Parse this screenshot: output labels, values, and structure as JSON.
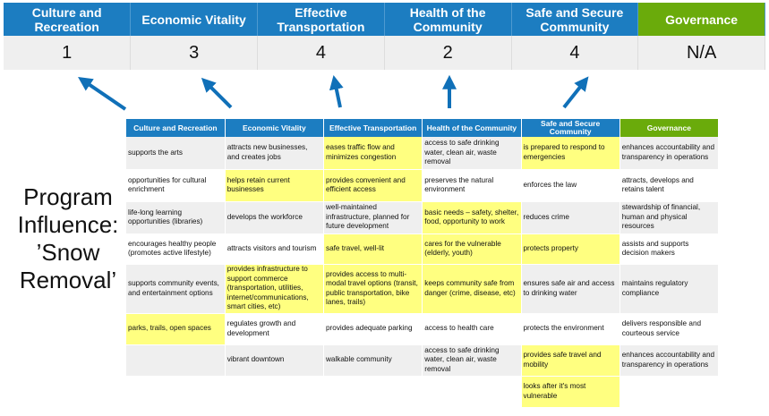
{
  "categories": [
    "Culture and Recreation",
    "Economic Vitality",
    "Effective Transportation",
    "Health of the Community",
    "Safe and Secure Community",
    "Governance"
  ],
  "scores": [
    "1",
    "3",
    "4",
    "2",
    "4",
    "N/A"
  ],
  "program_label": {
    "line1": "Program",
    "line2": "Influence:",
    "line3": "’Snow",
    "line4": "Removal’"
  },
  "colors": {
    "header_blue": "#1c7dc1",
    "governance_green": "#6aab0b",
    "highlight_yellow": "#ffff80",
    "arrow_blue": "#1070b8"
  },
  "rows": [
    {
      "cells": [
        "supports the arts",
        "attracts new businesses, and creates jobs",
        "eases traffic flow and minimizes congestion",
        "access to safe drinking water, clean air, waste removal",
        "is prepared to respond to emergencies",
        "enhances accountability and transparency in operations"
      ],
      "highlighted": [
        false,
        false,
        true,
        false,
        true,
        false
      ]
    },
    {
      "cells": [
        "opportunities for cultural enrichment",
        "helps retain current businesses",
        "provides convenient and efficient access",
        "preserves the natural environment",
        "enforces the law",
        "attracts, develops and retains talent"
      ],
      "highlighted": [
        false,
        true,
        true,
        false,
        false,
        false
      ]
    },
    {
      "cells": [
        "life-long learning opportunities (libraries)",
        "develops the workforce",
        "well-maintained infrastructure, planned for future development",
        "basic needs – safety, shelter, food, opportunity to work",
        "reduces crime",
        "stewardship of financial, human and physical resources"
      ],
      "highlighted": [
        false,
        false,
        false,
        true,
        false,
        false
      ]
    },
    {
      "cells": [
        "encourages healthy people (promotes active lifestyle)",
        "attracts visitors and tourism",
        "safe travel, well-lit",
        "cares for the vulnerable (elderly, youth)",
        "protects property",
        "assists and supports decision makers"
      ],
      "highlighted": [
        false,
        false,
        true,
        true,
        true,
        false
      ]
    },
    {
      "cells": [
        "supports community events, and entertainment options",
        "provides infrastructure to support commerce (transportation, utilities, internet/communications, smart cities, etc)",
        "provides access to multi-modal travel options (transit, public transportation, bike lanes, trails)",
        "keeps community safe from danger (crime, disease, etc)",
        "ensures safe air and access to drinking water",
        "maintains regulatory compliance"
      ],
      "highlighted": [
        false,
        true,
        true,
        true,
        false,
        false
      ]
    },
    {
      "cells": [
        "parks, trails, open spaces",
        "regulates growth and development",
        "provides adequate parking",
        "access to health care",
        "protects the environment",
        "delivers responsible and courteous service"
      ],
      "highlighted": [
        true,
        false,
        false,
        false,
        false,
        false
      ]
    },
    {
      "cells": [
        "",
        "vibrant downtown",
        "walkable community",
        "access to safe drinking water, clean air, waste removal",
        "provides safe travel and mobility",
        "enhances accountability and transparency in operations"
      ],
      "highlighted": [
        false,
        false,
        false,
        false,
        true,
        false
      ]
    },
    {
      "cells": [
        "",
        "",
        "",
        "",
        "looks after it's most vulnerable",
        ""
      ],
      "highlighted": [
        false,
        false,
        false,
        false,
        true,
        false
      ]
    }
  ]
}
